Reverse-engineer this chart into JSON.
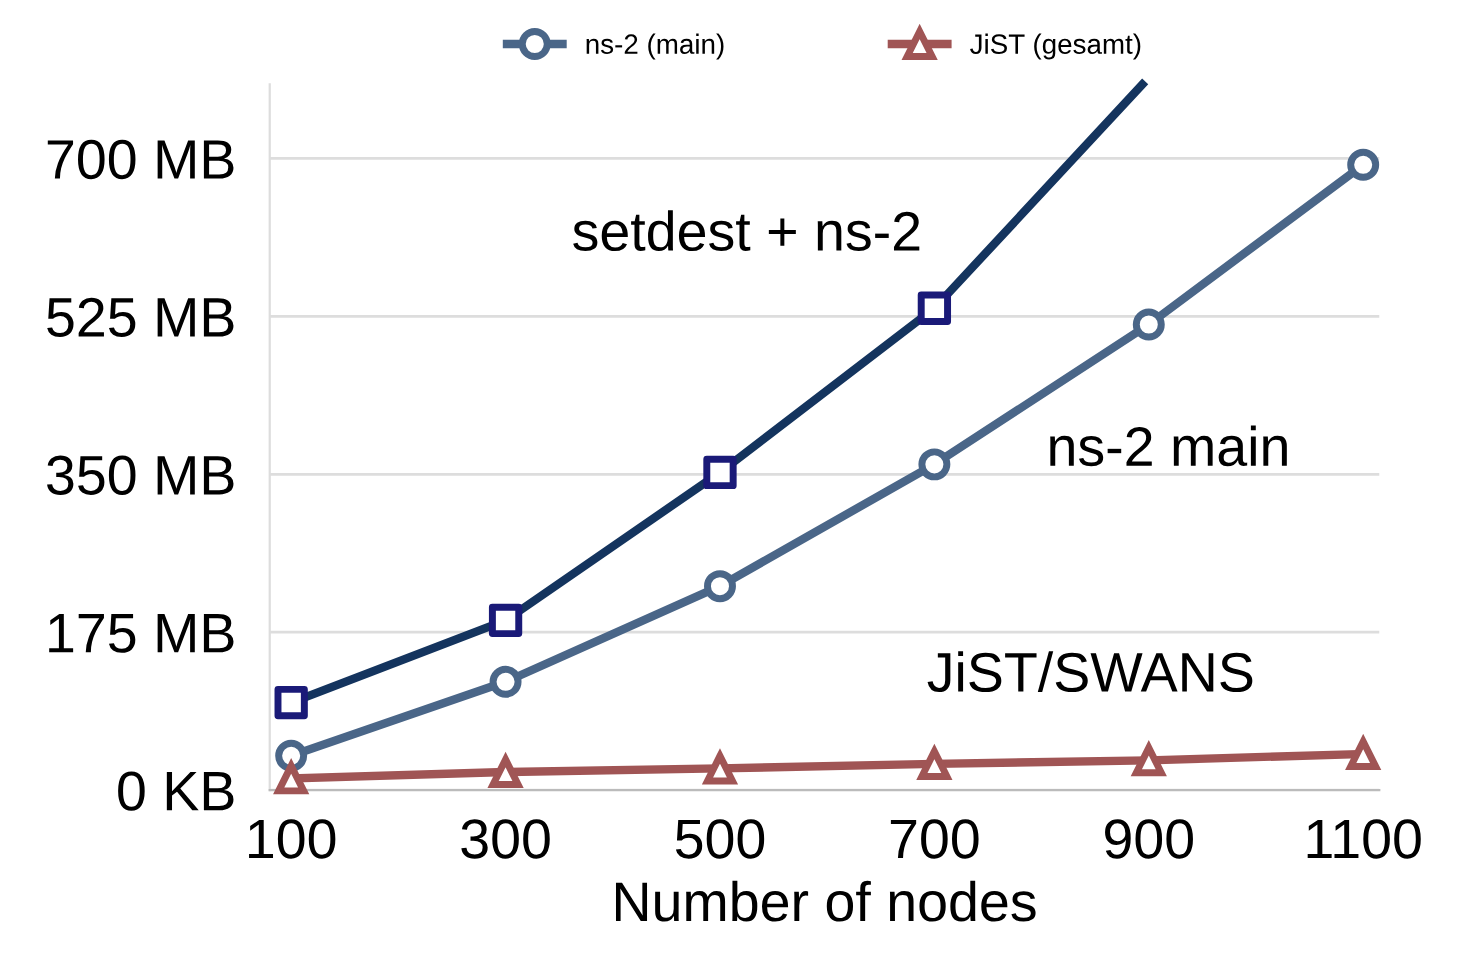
{
  "chart_data": {
    "type": "line",
    "xlabel": "Number of nodes",
    "x": [
      100,
      300,
      500,
      700,
      900,
      1100
    ],
    "series": [
      {
        "name": "ns-2 (main)",
        "color": "#4a6688",
        "marker": "circle",
        "values": [
          38,
          120,
          226,
          361,
          516,
          693
        ]
      },
      {
        "name": "JiST (gesamt)",
        "color": "#a05555",
        "marker": "triangle",
        "values": [
          13,
          20,
          24,
          29,
          33,
          40
        ]
      },
      {
        "type": "line",
        "color": "#14345e",
        "x": [
          100,
          300,
          500,
          700,
          894
        ],
        "values": [
          97,
          188,
          352,
          534,
          782
        ]
      },
      {
        "type": "scatter",
        "color": "#1a1a78",
        "marker": "square",
        "x": [
          100,
          300,
          500,
          700
        ],
        "values": [
          97,
          188,
          352,
          534
        ]
      }
    ],
    "annotations": [
      "setdest + ns-2",
      "ns-2 main",
      "JiST/SWANS"
    ],
    "xlim": [
      80,
      1115
    ],
    "ylim": [
      0,
      782
    ],
    "xticks": [
      100,
      300,
      500,
      700,
      900,
      1100
    ],
    "yticks": [
      {
        "value": 0,
        "label": "0 KB"
      },
      {
        "value": 175,
        "label": "175 MB"
      },
      {
        "value": 350,
        "label": "350 MB"
      },
      {
        "value": 525,
        "label": "525 MB"
      },
      {
        "value": 700,
        "label": "700 MB"
      }
    ],
    "grid": "y",
    "legend": "top"
  }
}
